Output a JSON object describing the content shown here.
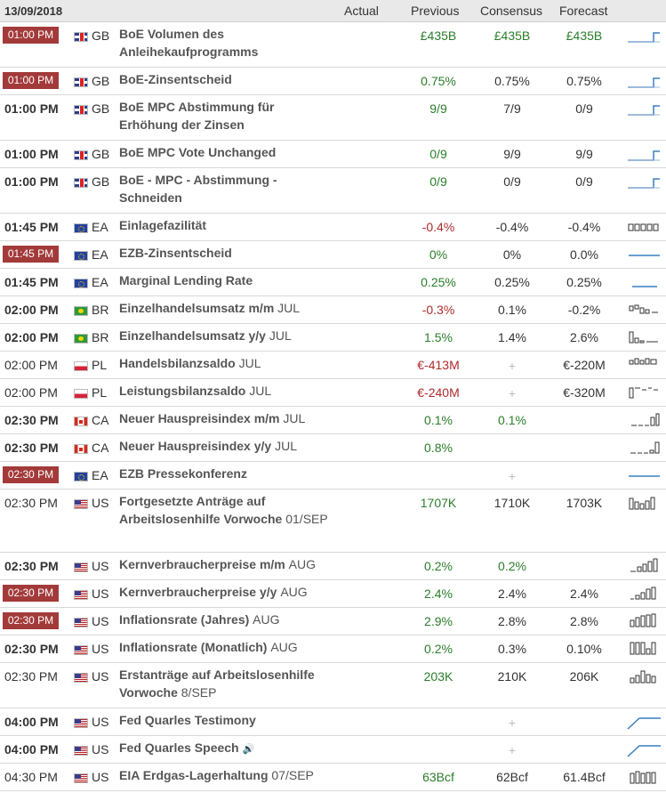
{
  "header": {
    "date": "13/09/2018",
    "actual": "Actual",
    "previous": "Previous",
    "consensus": "Consensus",
    "forecast": "Forecast"
  },
  "colors": {
    "highlight": "#a33a3a",
    "positive": "#2a7d2a",
    "negative": "#b02a2a",
    "chart": "#3a7fc0"
  },
  "rows": [
    {
      "time": "01:00 PM",
      "tstyle": "hl",
      "cc": "GB",
      "flag": "gb",
      "event": "BoE Volumen des Anleihekaufprogramms",
      "actual": "",
      "previous": "£435B",
      "pcolor": "green",
      "consensus": "£435B",
      "ccolor": "green",
      "forecast": "£435B",
      "fcolor": "green",
      "spark": "step-up",
      "h": 51
    },
    {
      "time": "01:00 PM",
      "tstyle": "hl",
      "cc": "GB",
      "flag": "gb",
      "event": "BoE-Zinsentscheid",
      "actual": "",
      "previous": "0.75%",
      "pcolor": "green",
      "consensus": "0.75%",
      "forecast": "0.75%",
      "spark": "step-up",
      "h": 31
    },
    {
      "time": "01:00 PM",
      "tstyle": "bold",
      "cc": "GB",
      "flag": "gb",
      "event": "BoE MPC Abstimmung für Erhöhung der Zinsen",
      "actual": "",
      "previous": "9/9",
      "pcolor": "green",
      "consensus": "7/9",
      "forecast": "0/9",
      "spark": "step-up",
      "h": 51
    },
    {
      "time": "01:00 PM",
      "tstyle": "bold",
      "cc": "GB",
      "flag": "gb",
      "event": "BoE MPC Vote Unchanged",
      "actual": "",
      "previous": "0/9",
      "pcolor": "green",
      "consensus": "9/9",
      "forecast": "9/9",
      "spark": "step-up",
      "h": 31
    },
    {
      "time": "01:00 PM",
      "tstyle": "bold",
      "cc": "GB",
      "flag": "gb",
      "event": "BoE - MPC - Abstimmung - Schneiden",
      "actual": "",
      "previous": "0/9",
      "pcolor": "green",
      "consensus": "0/9",
      "forecast": "0/9",
      "spark": "step-up",
      "h": 51
    },
    {
      "time": "01:45 PM",
      "tstyle": "bold",
      "cc": "EA",
      "flag": "ea",
      "event": "Einlagefazilität",
      "actual": "",
      "previous": "-0.4%",
      "pcolor": "red",
      "consensus": "-0.4%",
      "forecast": "-0.4%",
      "spark": "boxes",
      "h": 31
    },
    {
      "time": "01:45 PM",
      "tstyle": "hl",
      "cc": "EA",
      "flag": "ea",
      "event": "EZB-Zinsentscheid",
      "actual": "",
      "previous": "0%",
      "pcolor": "green",
      "consensus": "0%",
      "forecast": "0.0%",
      "spark": "flat",
      "h": 31
    },
    {
      "time": "01:45 PM",
      "tstyle": "bold",
      "cc": "EA",
      "flag": "ea",
      "event": "Marginal Lending Rate",
      "actual": "",
      "previous": "0.25%",
      "pcolor": "green",
      "consensus": "0.25%",
      "forecast": "0.25%",
      "spark": "flat-low",
      "h": 31
    },
    {
      "time": "02:00 PM",
      "tstyle": "bold",
      "cc": "BR",
      "flag": "br",
      "event": "Einzelhandelsumsatz m/m",
      "period": "JUL",
      "actual": "",
      "previous": "-0.3%",
      "pcolor": "red",
      "consensus": "0.1%",
      "forecast": "-0.2%",
      "spark": "mixed1",
      "h": 31
    },
    {
      "time": "02:00 PM",
      "tstyle": "bold",
      "cc": "BR",
      "flag": "br",
      "event": "Einzelhandelsumsatz y/y",
      "period": "JUL",
      "actual": "",
      "previous": "1.5%",
      "pcolor": "green",
      "consensus": "1.4%",
      "forecast": "2.6%",
      "spark": "mixed2",
      "h": 31
    },
    {
      "time": "02:00 PM",
      "tstyle": "normal",
      "cc": "PL",
      "flag": "pl",
      "event": "Handelsbilanzsaldo",
      "period": "JUL",
      "actual": "",
      "previous": "€-413M",
      "pcolor": "red",
      "consensus": "+",
      "consplus": true,
      "forecast": "€-220M",
      "spark": "mixed3",
      "h": 31
    },
    {
      "time": "02:00 PM",
      "tstyle": "normal",
      "cc": "PL",
      "flag": "pl",
      "event": "Leistungsbilanzsaldo",
      "period": "JUL",
      "actual": "",
      "previous": "€-240M",
      "pcolor": "red",
      "consensus": "+",
      "consplus": true,
      "forecast": "€-320M",
      "spark": "mixed4",
      "h": 31
    },
    {
      "time": "02:30 PM",
      "tstyle": "bold",
      "cc": "CA",
      "flag": "ca",
      "event": "Neuer Hauspreisindex m/m",
      "period": "JUL",
      "actual": "",
      "previous": "0.1%",
      "pcolor": "green",
      "consensus": "0.1%",
      "ccolor": "green",
      "forecast": "",
      "spark": "rise1",
      "h": 31
    },
    {
      "time": "02:30 PM",
      "tstyle": "bold",
      "cc": "CA",
      "flag": "ca",
      "event": "Neuer Hauspreisindex y/y",
      "period": "JUL",
      "actual": "",
      "previous": "0.8%",
      "pcolor": "green",
      "consensus": "",
      "forecast": "",
      "spark": "rise2",
      "h": 31
    },
    {
      "time": "02:30 PM",
      "tstyle": "hl",
      "cc": "EA",
      "flag": "ea",
      "event": "EZB Pressekonferenz",
      "actual": "",
      "previous": "",
      "consensus": "+",
      "consplus": true,
      "forecast": "",
      "spark": "flat",
      "h": 31
    },
    {
      "time": "02:30 PM",
      "tstyle": "normal",
      "cc": "US",
      "flag": "us",
      "event": "Fortgesetzte Anträge auf Arbeitslosenhilfe Vorwoche",
      "period": "01/SEP",
      "actual": "",
      "previous": "1707K",
      "pcolor": "green",
      "consensus": "1710K",
      "forecast": "1703K",
      "spark": "bars1",
      "h": 71
    },
    {
      "time": "02:30 PM",
      "tstyle": "bold",
      "cc": "US",
      "flag": "us",
      "event": "Kernverbraucherpreise m/m",
      "period": "AUG",
      "actual": "",
      "previous": "0.2%",
      "pcolor": "green",
      "consensus": "0.2%",
      "ccolor": "green",
      "forecast": "",
      "spark": "bars2",
      "h": 31
    },
    {
      "time": "02:30 PM",
      "tstyle": "hl",
      "cc": "US",
      "flag": "us",
      "event": "Kernverbraucherpreise y/y",
      "period": "AUG",
      "actual": "",
      "previous": "2.4%",
      "pcolor": "green",
      "consensus": "2.4%",
      "forecast": "2.4%",
      "spark": "bars3",
      "h": 31
    },
    {
      "time": "02:30 PM",
      "tstyle": "hl",
      "cc": "US",
      "flag": "us",
      "event": "Inflationsrate (Jahres)",
      "period": "AUG",
      "actual": "",
      "previous": "2.9%",
      "pcolor": "green",
      "consensus": "2.8%",
      "forecast": "2.8%",
      "spark": "bars4",
      "h": 31
    },
    {
      "time": "02:30 PM",
      "tstyle": "bold",
      "cc": "US",
      "flag": "us",
      "event": "Inflationsrate (Monatlich)",
      "period": "AUG",
      "actual": "",
      "previous": "0.2%",
      "pcolor": "green",
      "consensus": "0.3%",
      "forecast": "0.10%",
      "spark": "bars5",
      "h": 31
    },
    {
      "time": "02:30 PM",
      "tstyle": "normal",
      "cc": "US",
      "flag": "us",
      "event": "Erstanträge auf Arbeitslosenhilfe Vorwoche",
      "period": "8/SEP",
      "actual": "",
      "previous": "203K",
      "pcolor": "green",
      "consensus": "210K",
      "forecast": "206K",
      "spark": "bars6",
      "h": 51
    },
    {
      "time": "04:00 PM",
      "tstyle": "bold",
      "cc": "US",
      "flag": "us",
      "event": "Fed Quarles Testimony",
      "actual": "",
      "previous": "",
      "consensus": "+",
      "consplus": true,
      "forecast": "",
      "spark": "ramp",
      "h": 31
    },
    {
      "time": "04:00 PM",
      "tstyle": "bold",
      "cc": "US",
      "flag": "us",
      "event": "Fed Quarles Speech",
      "speaker": "🔊",
      "actual": "",
      "previous": "",
      "consensus": "+",
      "consplus": true,
      "forecast": "",
      "spark": "ramp",
      "h": 31
    },
    {
      "time": "04:30 PM",
      "tstyle": "normal",
      "cc": "US",
      "flag": "us",
      "event": "EIA Erdgas-Lagerhaltung",
      "period": "07/SEP",
      "actual": "",
      "previous": "63Bcf",
      "pcolor": "green",
      "consensus": "62Bcf",
      "forecast": "61.4Bcf",
      "spark": "bars7",
      "h": 31
    }
  ]
}
